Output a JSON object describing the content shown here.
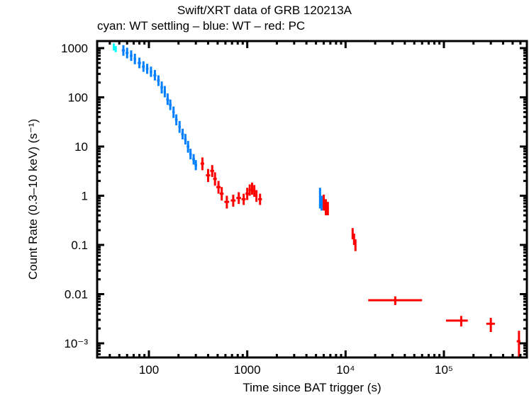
{
  "chart_data": {
    "type": "scatter",
    "title": "Swift/XRT data of GRB 120213A",
    "subtitle": "cyan: WT settling – blue: WT – red: PC",
    "xlabel": "Time since BAT trigger (s)",
    "ylabel": "Count Rate (0.3–10 keV) (s⁻¹)",
    "xscale": "log",
    "yscale": "log",
    "xlim": [
      32,
      650000
    ],
    "ylim": [
      0.0003,
      1500
    ],
    "grid": false,
    "x_tick_labels": [
      {
        "value": 100,
        "label": "100"
      },
      {
        "value": 1000,
        "label": "1000"
      },
      {
        "value": 10000,
        "label": "10⁴"
      },
      {
        "value": 100000,
        "label": "10⁵"
      }
    ],
    "y_tick_labels": [
      {
        "value": 1000,
        "label": "1000"
      },
      {
        "value": 100,
        "label": "100"
      },
      {
        "value": 10,
        "label": "10"
      },
      {
        "value": 1,
        "label": "1"
      },
      {
        "value": 0.1,
        "label": "0.1"
      },
      {
        "value": 0.01,
        "label": "0.01"
      },
      {
        "value": 0.001,
        "label": "10⁻³"
      }
    ],
    "series": [
      {
        "name": "WT settling",
        "color": "#00ffff",
        "points": [
          {
            "x": 44,
            "y": 1050,
            "xerr": [
              1,
              1
            ],
            "yerr": [
              150,
              200
            ]
          },
          {
            "x": 46,
            "y": 950,
            "xerr": [
              1,
              1
            ],
            "yerr": [
              120,
              150
            ]
          }
        ]
      },
      {
        "name": "WT",
        "color": "#0080ff",
        "points": [
          {
            "x": 55,
            "y": 900,
            "xerr": [
              2,
              2
            ],
            "yerr": [
              200,
              250
            ]
          },
          {
            "x": 60,
            "y": 800,
            "xerr": [
              2,
              2
            ],
            "yerr": [
              180,
              220
            ]
          },
          {
            "x": 66,
            "y": 700,
            "xerr": [
              2,
              2
            ],
            "yerr": [
              150,
              200
            ]
          },
          {
            "x": 72,
            "y": 600,
            "xerr": [
              2,
              2
            ],
            "yerr": [
              130,
              170
            ]
          },
          {
            "x": 80,
            "y": 500,
            "xerr": [
              3,
              3
            ],
            "yerr": [
              110,
              140
            ]
          },
          {
            "x": 88,
            "y": 420,
            "xerr": [
              3,
              3
            ],
            "yerr": [
              90,
              120
            ]
          },
          {
            "x": 96,
            "y": 380,
            "xerr": [
              3,
              3
            ],
            "yerr": [
              80,
              100
            ]
          },
          {
            "x": 105,
            "y": 330,
            "xerr": [
              3,
              3
            ],
            "yerr": [
              70,
              90
            ]
          },
          {
            "x": 115,
            "y": 280,
            "xerr": [
              4,
              4
            ],
            "yerr": [
              60,
              80
            ]
          },
          {
            "x": 125,
            "y": 220,
            "xerr": [
              4,
              4
            ],
            "yerr": [
              50,
              60
            ]
          },
          {
            "x": 135,
            "y": 160,
            "xerr": [
              4,
              4
            ],
            "yerr": [
              40,
              50
            ]
          },
          {
            "x": 145,
            "y": 130,
            "xerr": [
              4,
              4
            ],
            "yerr": [
              30,
              40
            ]
          },
          {
            "x": 155,
            "y": 90,
            "xerr": [
              5,
              5
            ],
            "yerr": [
              20,
              30
            ]
          },
          {
            "x": 165,
            "y": 70,
            "xerr": [
              5,
              5
            ],
            "yerr": [
              15,
              20
            ]
          },
          {
            "x": 178,
            "y": 50,
            "xerr": [
              5,
              5
            ],
            "yerr": [
              12,
              15
            ]
          },
          {
            "x": 190,
            "y": 35,
            "xerr": [
              6,
              6
            ],
            "yerr": [
              8,
              10
            ]
          },
          {
            "x": 205,
            "y": 25,
            "xerr": [
              6,
              6
            ],
            "yerr": [
              6,
              8
            ]
          },
          {
            "x": 220,
            "y": 18,
            "xerr": [
              7,
              7
            ],
            "yerr": [
              4,
              5
            ]
          },
          {
            "x": 235,
            "y": 14,
            "xerr": [
              7,
              7
            ],
            "yerr": [
              3,
              4
            ]
          },
          {
            "x": 250,
            "y": 10,
            "xerr": [
              8,
              8
            ],
            "yerr": [
              2.5,
              3
            ]
          },
          {
            "x": 265,
            "y": 7,
            "xerr": [
              8,
              8
            ],
            "yerr": [
              1.5,
              2
            ]
          },
          {
            "x": 285,
            "y": 5.5,
            "xerr": [
              9,
              9
            ],
            "yerr": [
              1.2,
              1.5
            ]
          },
          {
            "x": 300,
            "y": 4.2,
            "xerr": [
              9,
              9
            ],
            "yerr": [
              0.9,
              1.1
            ]
          },
          {
            "x": 5500,
            "y": 0.95,
            "xerr": [
              100,
              100
            ],
            "yerr": [
              0.4,
              0.5
            ]
          },
          {
            "x": 5700,
            "y": 0.7,
            "xerr": [
              100,
              100
            ],
            "yerr": [
              0.2,
              0.3
            ]
          }
        ]
      },
      {
        "name": "PC",
        "color": "#ff0000",
        "points": [
          {
            "x": 350,
            "y": 4.5,
            "xerr": [
              15,
              15
            ],
            "yerr": [
              1.2,
              1.5
            ]
          },
          {
            "x": 400,
            "y": 2.6,
            "xerr": [
              20,
              20
            ],
            "yerr": [
              0.7,
              0.9
            ]
          },
          {
            "x": 440,
            "y": 3.2,
            "xerr": [
              20,
              20
            ],
            "yerr": [
              0.8,
              1.0
            ]
          },
          {
            "x": 470,
            "y": 2.2,
            "xerr": [
              20,
              20
            ],
            "yerr": [
              0.6,
              0.8
            ]
          },
          {
            "x": 510,
            "y": 1.5,
            "xerr": [
              25,
              25
            ],
            "yerr": [
              0.4,
              0.5
            ]
          },
          {
            "x": 550,
            "y": 1.1,
            "xerr": [
              25,
              25
            ],
            "yerr": [
              0.3,
              0.4
            ]
          },
          {
            "x": 620,
            "y": 0.75,
            "xerr": [
              35,
              35
            ],
            "yerr": [
              0.2,
              0.25
            ]
          },
          {
            "x": 720,
            "y": 0.8,
            "xerr": [
              40,
              40
            ],
            "yerr": [
              0.2,
              0.25
            ]
          },
          {
            "x": 820,
            "y": 0.9,
            "xerr": [
              45,
              45
            ],
            "yerr": [
              0.22,
              0.28
            ]
          },
          {
            "x": 920,
            "y": 0.85,
            "xerr": [
              45,
              45
            ],
            "yerr": [
              0.2,
              0.25
            ]
          },
          {
            "x": 1000,
            "y": 1.1,
            "xerr": [
              40,
              40
            ],
            "yerr": [
              0.28,
              0.35
            ]
          },
          {
            "x": 1060,
            "y": 1.3,
            "xerr": [
              30,
              30
            ],
            "yerr": [
              0.3,
              0.4
            ]
          },
          {
            "x": 1120,
            "y": 1.4,
            "xerr": [
              30,
              30
            ],
            "yerr": [
              0.35,
              0.45
            ]
          },
          {
            "x": 1180,
            "y": 1.25,
            "xerr": [
              30,
              30
            ],
            "yerr": [
              0.3,
              0.4
            ]
          },
          {
            "x": 1240,
            "y": 1.0,
            "xerr": [
              30,
              30
            ],
            "yerr": [
              0.25,
              0.3
            ]
          },
          {
            "x": 1350,
            "y": 0.85,
            "xerr": [
              60,
              60
            ],
            "yerr": [
              0.2,
              0.25
            ]
          },
          {
            "x": 6000,
            "y": 0.75,
            "xerr": [
              150,
              150
            ],
            "yerr": [
              0.25,
              0.3
            ]
          },
          {
            "x": 6300,
            "y": 0.6,
            "xerr": [
              150,
              150
            ],
            "yerr": [
              0.2,
              0.25
            ]
          },
          {
            "x": 6600,
            "y": 0.55,
            "xerr": [
              150,
              150
            ],
            "yerr": [
              0.15,
              0.2
            ]
          },
          {
            "x": 11800,
            "y": 0.17,
            "xerr": [
              150,
              150
            ],
            "yerr": [
              0.04,
              0.05
            ]
          },
          {
            "x": 12200,
            "y": 0.13,
            "xerr": [
              150,
              150
            ],
            "yerr": [
              0.03,
              0.04
            ]
          },
          {
            "x": 12600,
            "y": 0.1,
            "xerr": [
              150,
              150
            ],
            "yerr": [
              0.025,
              0.03
            ]
          },
          {
            "x": 32000,
            "y": 0.0075,
            "xerr": [
              15000,
              28000
            ],
            "yerr": [
              0.0015,
              0.0015
            ]
          },
          {
            "x": 150000,
            "y": 0.0029,
            "xerr": [
              45000,
              25000
            ],
            "yerr": [
              0.0007,
              0.0007
            ]
          },
          {
            "x": 300000,
            "y": 0.0025,
            "xerr": [
              30000,
              30000
            ],
            "yerr": [
              0.0008,
              0.0008
            ]
          },
          {
            "x": 580000,
            "y": 0.0011,
            "xerr": [
              30000,
              20000
            ],
            "yerr": [
              0.0006,
              0.0007
            ]
          }
        ]
      }
    ]
  }
}
